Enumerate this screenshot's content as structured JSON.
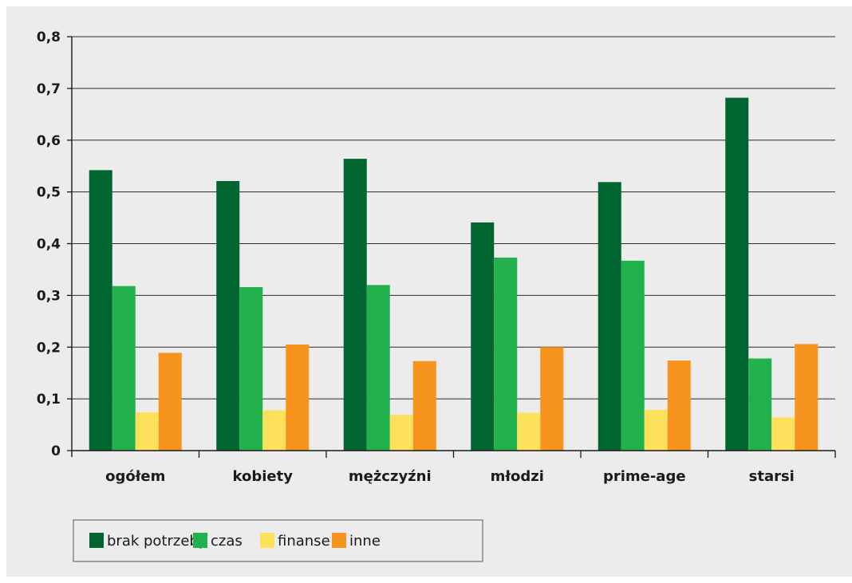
{
  "chart_data": {
    "type": "bar",
    "categories": [
      "ogółem",
      "kobiety",
      "mężczyźni",
      "młodzi",
      "prime-age",
      "starsi"
    ],
    "series": [
      {
        "name": "brak potrzeby",
        "color": "#00652e",
        "values": [
          0.542,
          0.521,
          0.564,
          0.441,
          0.519,
          0.682
        ]
      },
      {
        "name": "czas",
        "color": "#22b14c",
        "values": [
          0.318,
          0.316,
          0.32,
          0.373,
          0.367,
          0.178
        ]
      },
      {
        "name": "finanse",
        "color": "#fde15a",
        "values": [
          0.074,
          0.078,
          0.069,
          0.073,
          0.079,
          0.064
        ]
      },
      {
        "name": "inne",
        "color": "#f7941d",
        "values": [
          0.189,
          0.205,
          0.173,
          0.2,
          0.174,
          0.206
        ]
      }
    ],
    "ylim": [
      0,
      0.8
    ],
    "yticks": [
      "0",
      "0,1",
      "0,2",
      "0,3",
      "0,4",
      "0,5",
      "0,6",
      "0,7",
      "0,8"
    ],
    "grid": true,
    "legend_position": "bottom-left"
  }
}
